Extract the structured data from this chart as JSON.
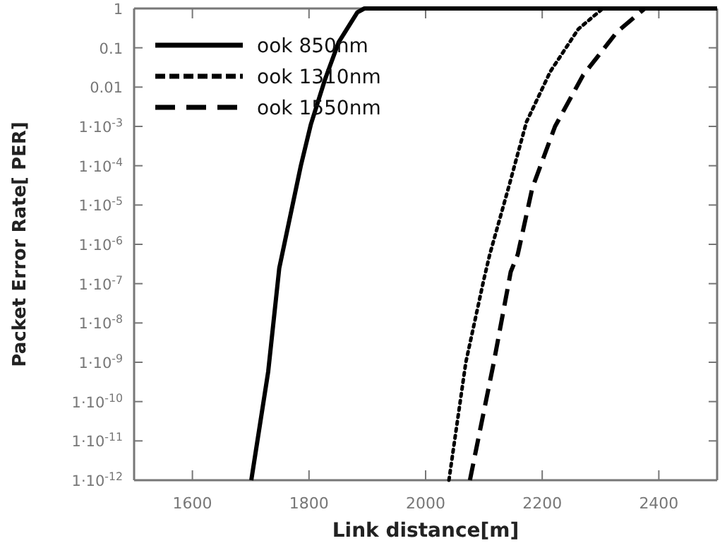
{
  "chart_data": {
    "type": "line",
    "xlabel": "Link distance[m]",
    "ylabel": "Packet Error Rate[ PER]",
    "log": "y",
    "grid": false,
    "legend": "top left",
    "xlim": [
      1500,
      2500
    ],
    "xticks": [
      1600,
      1800,
      2000,
      2200,
      2400
    ],
    "ylim": [
      1e-12,
      1
    ],
    "yticks": [
      1,
      0.1,
      0.01,
      {
        "value": 0.001,
        "label": "1·10$^{-3}$"
      },
      {
        "value": 0.0001,
        "label": "1·10$^{-4}$"
      },
      {
        "value": 1e-05,
        "label": "1·10$^{-5}$"
      },
      {
        "value": 1e-06,
        "label": "1·10$^{-6}$"
      },
      {
        "value": 1e-07,
        "label": "1·10$^{-7}$"
      },
      {
        "value": 1e-08,
        "label": "1·10$^{-8}$"
      },
      {
        "value": 1e-09,
        "label": "1·10$^{-9}$"
      },
      {
        "value": 1e-10,
        "label": "1·10$^{-10}$"
      },
      {
        "value": 1e-11,
        "label": "1·10$^{-11}$"
      },
      {
        "value": 1e-12,
        "label": "1·10$^{-12}$"
      }
    ],
    "series": [
      {
        "name": "ook 850nm",
        "color": "#000000",
        "line_style": "solid",
        "x": [
          1701,
          1730,
          1749,
          1786,
          1803,
          1827,
          1851,
          1883,
          1895,
          2500
        ],
        "values": [
          1e-12,
          5.8e-10,
          2.5e-07,
          0.0001,
          0.0011,
          0.015,
          0.14,
          0.8,
          1,
          1
        ]
      },
      {
        "name": "ook 1310nm",
        "color": "#000000",
        "line_style": "dotted",
        "x": [
          2040,
          2069,
          2100,
          2110,
          2142,
          2173,
          2214,
          2262,
          2304,
          2500
        ],
        "values": [
          1e-12,
          1e-09,
          1.3e-07,
          5.5e-07,
          2.7e-05,
          0.0013,
          0.025,
          0.3,
          1,
          1
        ]
      },
      {
        "name": "ook 1550nm",
        "color": "#000000",
        "line_style": "dashed",
        "x": [
          2076,
          2117,
          2146,
          2158,
          2183,
          2222,
          2270,
          2328,
          2376,
          2500
        ],
        "values": [
          1e-12,
          1e-09,
          2e-07,
          5.5e-07,
          2.7e-05,
          0.001,
          0.02,
          0.25,
          1,
          1
        ]
      }
    ]
  }
}
